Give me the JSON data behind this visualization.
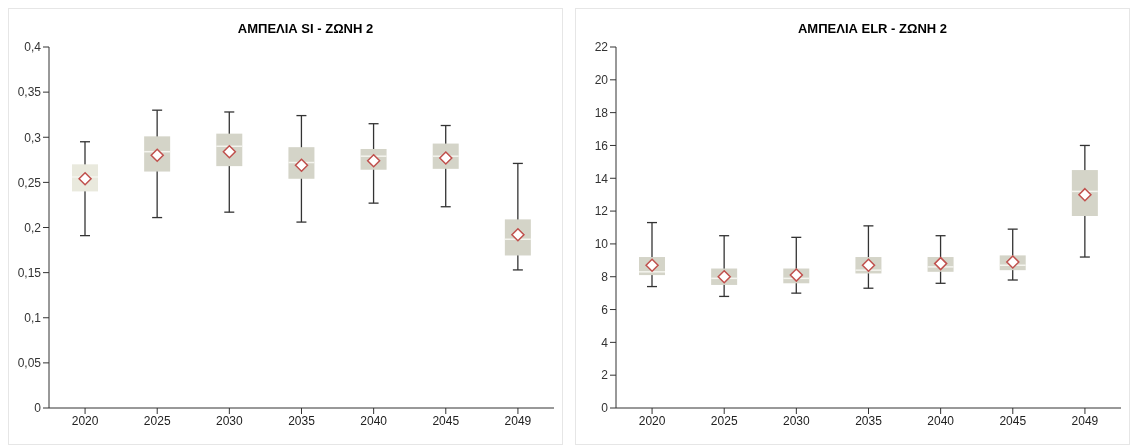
{
  "chart_data": [
    {
      "type": "box",
      "title": "ΑΜΠΕΛΙΑ SI - ΖΩΝΗ 2",
      "categories": [
        "2020",
        "2025",
        "2030",
        "2035",
        "2040",
        "2045",
        "2049"
      ],
      "boxes": [
        {
          "low": 0.191,
          "q1": 0.24,
          "median": 0.256,
          "q3": 0.27,
          "high": 0.295,
          "mean": 0.254
        },
        {
          "low": 0.211,
          "q1": 0.262,
          "median": 0.284,
          "q3": 0.301,
          "high": 0.33,
          "mean": 0.28
        },
        {
          "low": 0.217,
          "q1": 0.268,
          "median": 0.29,
          "q3": 0.304,
          "high": 0.328,
          "mean": 0.284
        },
        {
          "low": 0.206,
          "q1": 0.254,
          "median": 0.272,
          "q3": 0.289,
          "high": 0.324,
          "mean": 0.269
        },
        {
          "low": 0.227,
          "q1": 0.264,
          "median": 0.279,
          "q3": 0.287,
          "high": 0.315,
          "mean": 0.274
        },
        {
          "low": 0.223,
          "q1": 0.265,
          "median": 0.279,
          "q3": 0.293,
          "high": 0.313,
          "mean": 0.277
        },
        {
          "low": 0.153,
          "q1": 0.169,
          "median": 0.187,
          "q3": 0.209,
          "high": 0.271,
          "mean": 0.192
        }
      ],
      "colors": [
        "#e9e9dd",
        "#d4d4c8",
        "#d4d4c8",
        "#d4d4c8",
        "#d4d4c8",
        "#d4d4c8",
        "#d4d4c8"
      ],
      "ylim": [
        0,
        0.4
      ],
      "yticks": [
        0,
        {
          "value": 0.05,
          "label": "0,05"
        },
        {
          "value": 0.1,
          "label": "0,1"
        },
        {
          "value": 0.15,
          "label": "0,15"
        },
        {
          "value": 0.2,
          "label": "0,2"
        },
        {
          "value": 0.25,
          "label": "0,25"
        },
        {
          "value": 0.3,
          "label": "0,3"
        },
        {
          "value": 0.35,
          "label": "0,35"
        },
        {
          "value": 0.4,
          "label": "0,4"
        }
      ],
      "marker": "diamond"
    },
    {
      "type": "box",
      "title": "ΑΜΠΕΛΙΑ ELR - ΖΩΝΗ 2",
      "categories": [
        "2020",
        "2025",
        "2030",
        "2035",
        "2040",
        "2045",
        "2049"
      ],
      "boxes": [
        {
          "low": 7.4,
          "q1": 8.1,
          "median": 8.3,
          "q3": 9.2,
          "high": 11.3,
          "mean": 8.7
        },
        {
          "low": 6.8,
          "q1": 7.5,
          "median": 7.9,
          "q3": 8.5,
          "high": 10.5,
          "mean": 8.0
        },
        {
          "low": 7.0,
          "q1": 7.6,
          "median": 7.9,
          "q3": 8.5,
          "high": 10.4,
          "mean": 8.1
        },
        {
          "low": 7.3,
          "q1": 8.2,
          "median": 8.4,
          "q3": 9.2,
          "high": 11.1,
          "mean": 8.7
        },
        {
          "low": 7.6,
          "q1": 8.3,
          "median": 8.6,
          "q3": 9.2,
          "high": 10.5,
          "mean": 8.8
        },
        {
          "low": 7.8,
          "q1": 8.4,
          "median": 8.7,
          "q3": 9.3,
          "high": 10.9,
          "mean": 8.9
        },
        {
          "low": 9.2,
          "q1": 11.7,
          "median": 13.2,
          "q3": 14.5,
          "high": 16.0,
          "mean": 13.0
        }
      ],
      "colors": [
        "#d4d4c8",
        "#d4d4c8",
        "#d4d4c8",
        "#d4d4c8",
        "#d4d4c8",
        "#d4d4c8",
        "#d4d4c8"
      ],
      "ylim": [
        0,
        22
      ],
      "yticks": [
        0,
        2,
        4,
        6,
        8,
        10,
        12,
        14,
        16,
        18,
        20,
        22
      ],
      "marker": "diamond"
    }
  ]
}
